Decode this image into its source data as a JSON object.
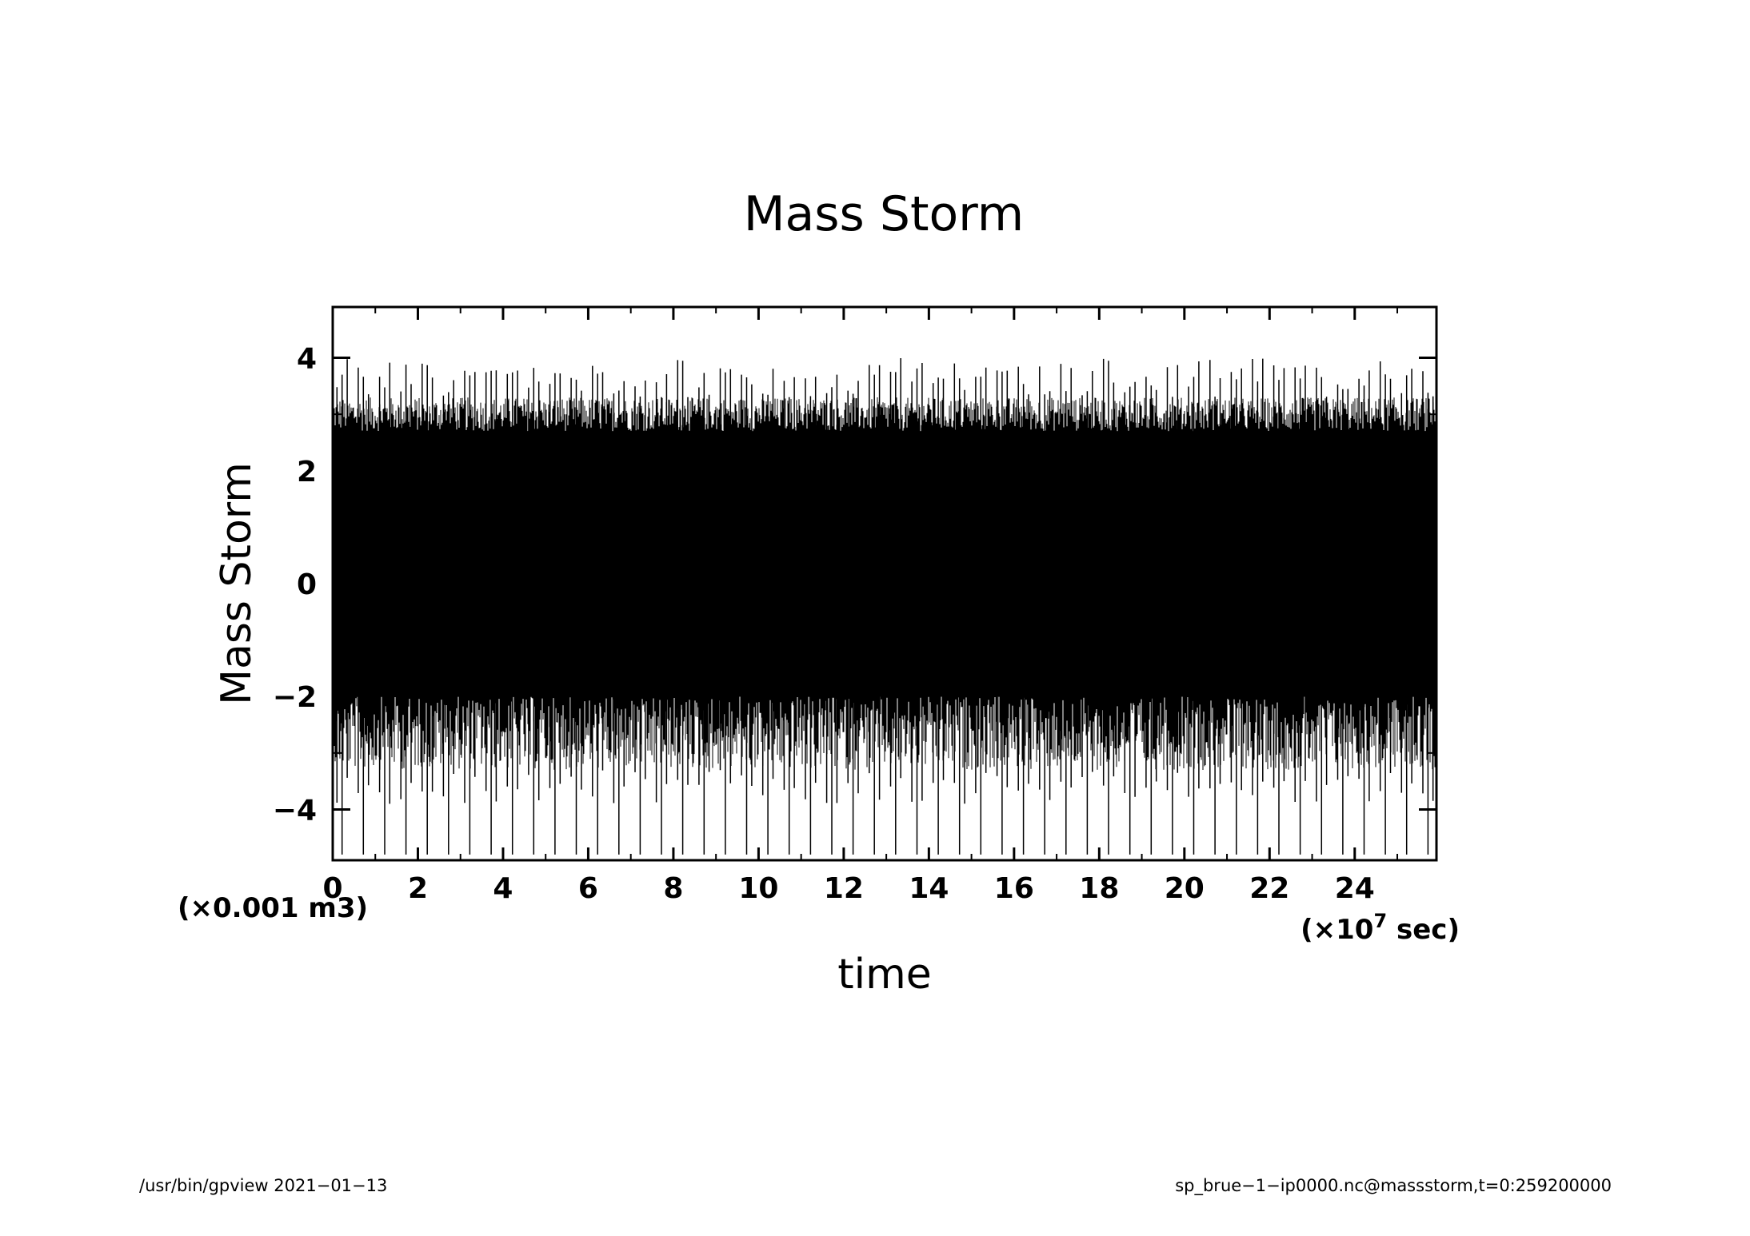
{
  "chart_data": {
    "type": "line",
    "title": "Mass Storm",
    "xlabel": "time",
    "ylabel": "Mass Storm",
    "x_unit_prefix": "(×10",
    "x_unit_exponent": "7",
    "x_unit_suffix": " sec)",
    "y_unit": "(×0.001 m3)",
    "xlim": [
      0,
      25.92
    ],
    "ylim": [
      -4.9,
      4.9
    ],
    "x_ticks": [
      0,
      2,
      4,
      6,
      8,
      10,
      12,
      14,
      16,
      18,
      20,
      22,
      24
    ],
    "x_tick_labels": [
      "0",
      "2",
      "4",
      "6",
      "8",
      "10",
      "12",
      "14",
      "16",
      "18",
      "20",
      "22",
      "24"
    ],
    "y_ticks": [
      4,
      2,
      0,
      -2,
      -4
    ],
    "y_tick_labels": [
      "4",
      "2",
      "0",
      "−2",
      "−4"
    ],
    "grid": false,
    "series": [
      {
        "envelope": {
          "typical_max": 3.3,
          "peak_max": 4.0,
          "typical_min": -3.3,
          "peak_min": -4.8,
          "dense_band": [
            -2.0,
            2.7
          ]
        },
        "approx_peak_period_x": 0.5,
        "color": "#000000"
      }
    ]
  },
  "footer": {
    "left": "/usr/bin/gpview   2021−01−13",
    "right": "sp_brue−1−ip0000.nc@massstorm,t=0:259200000"
  }
}
